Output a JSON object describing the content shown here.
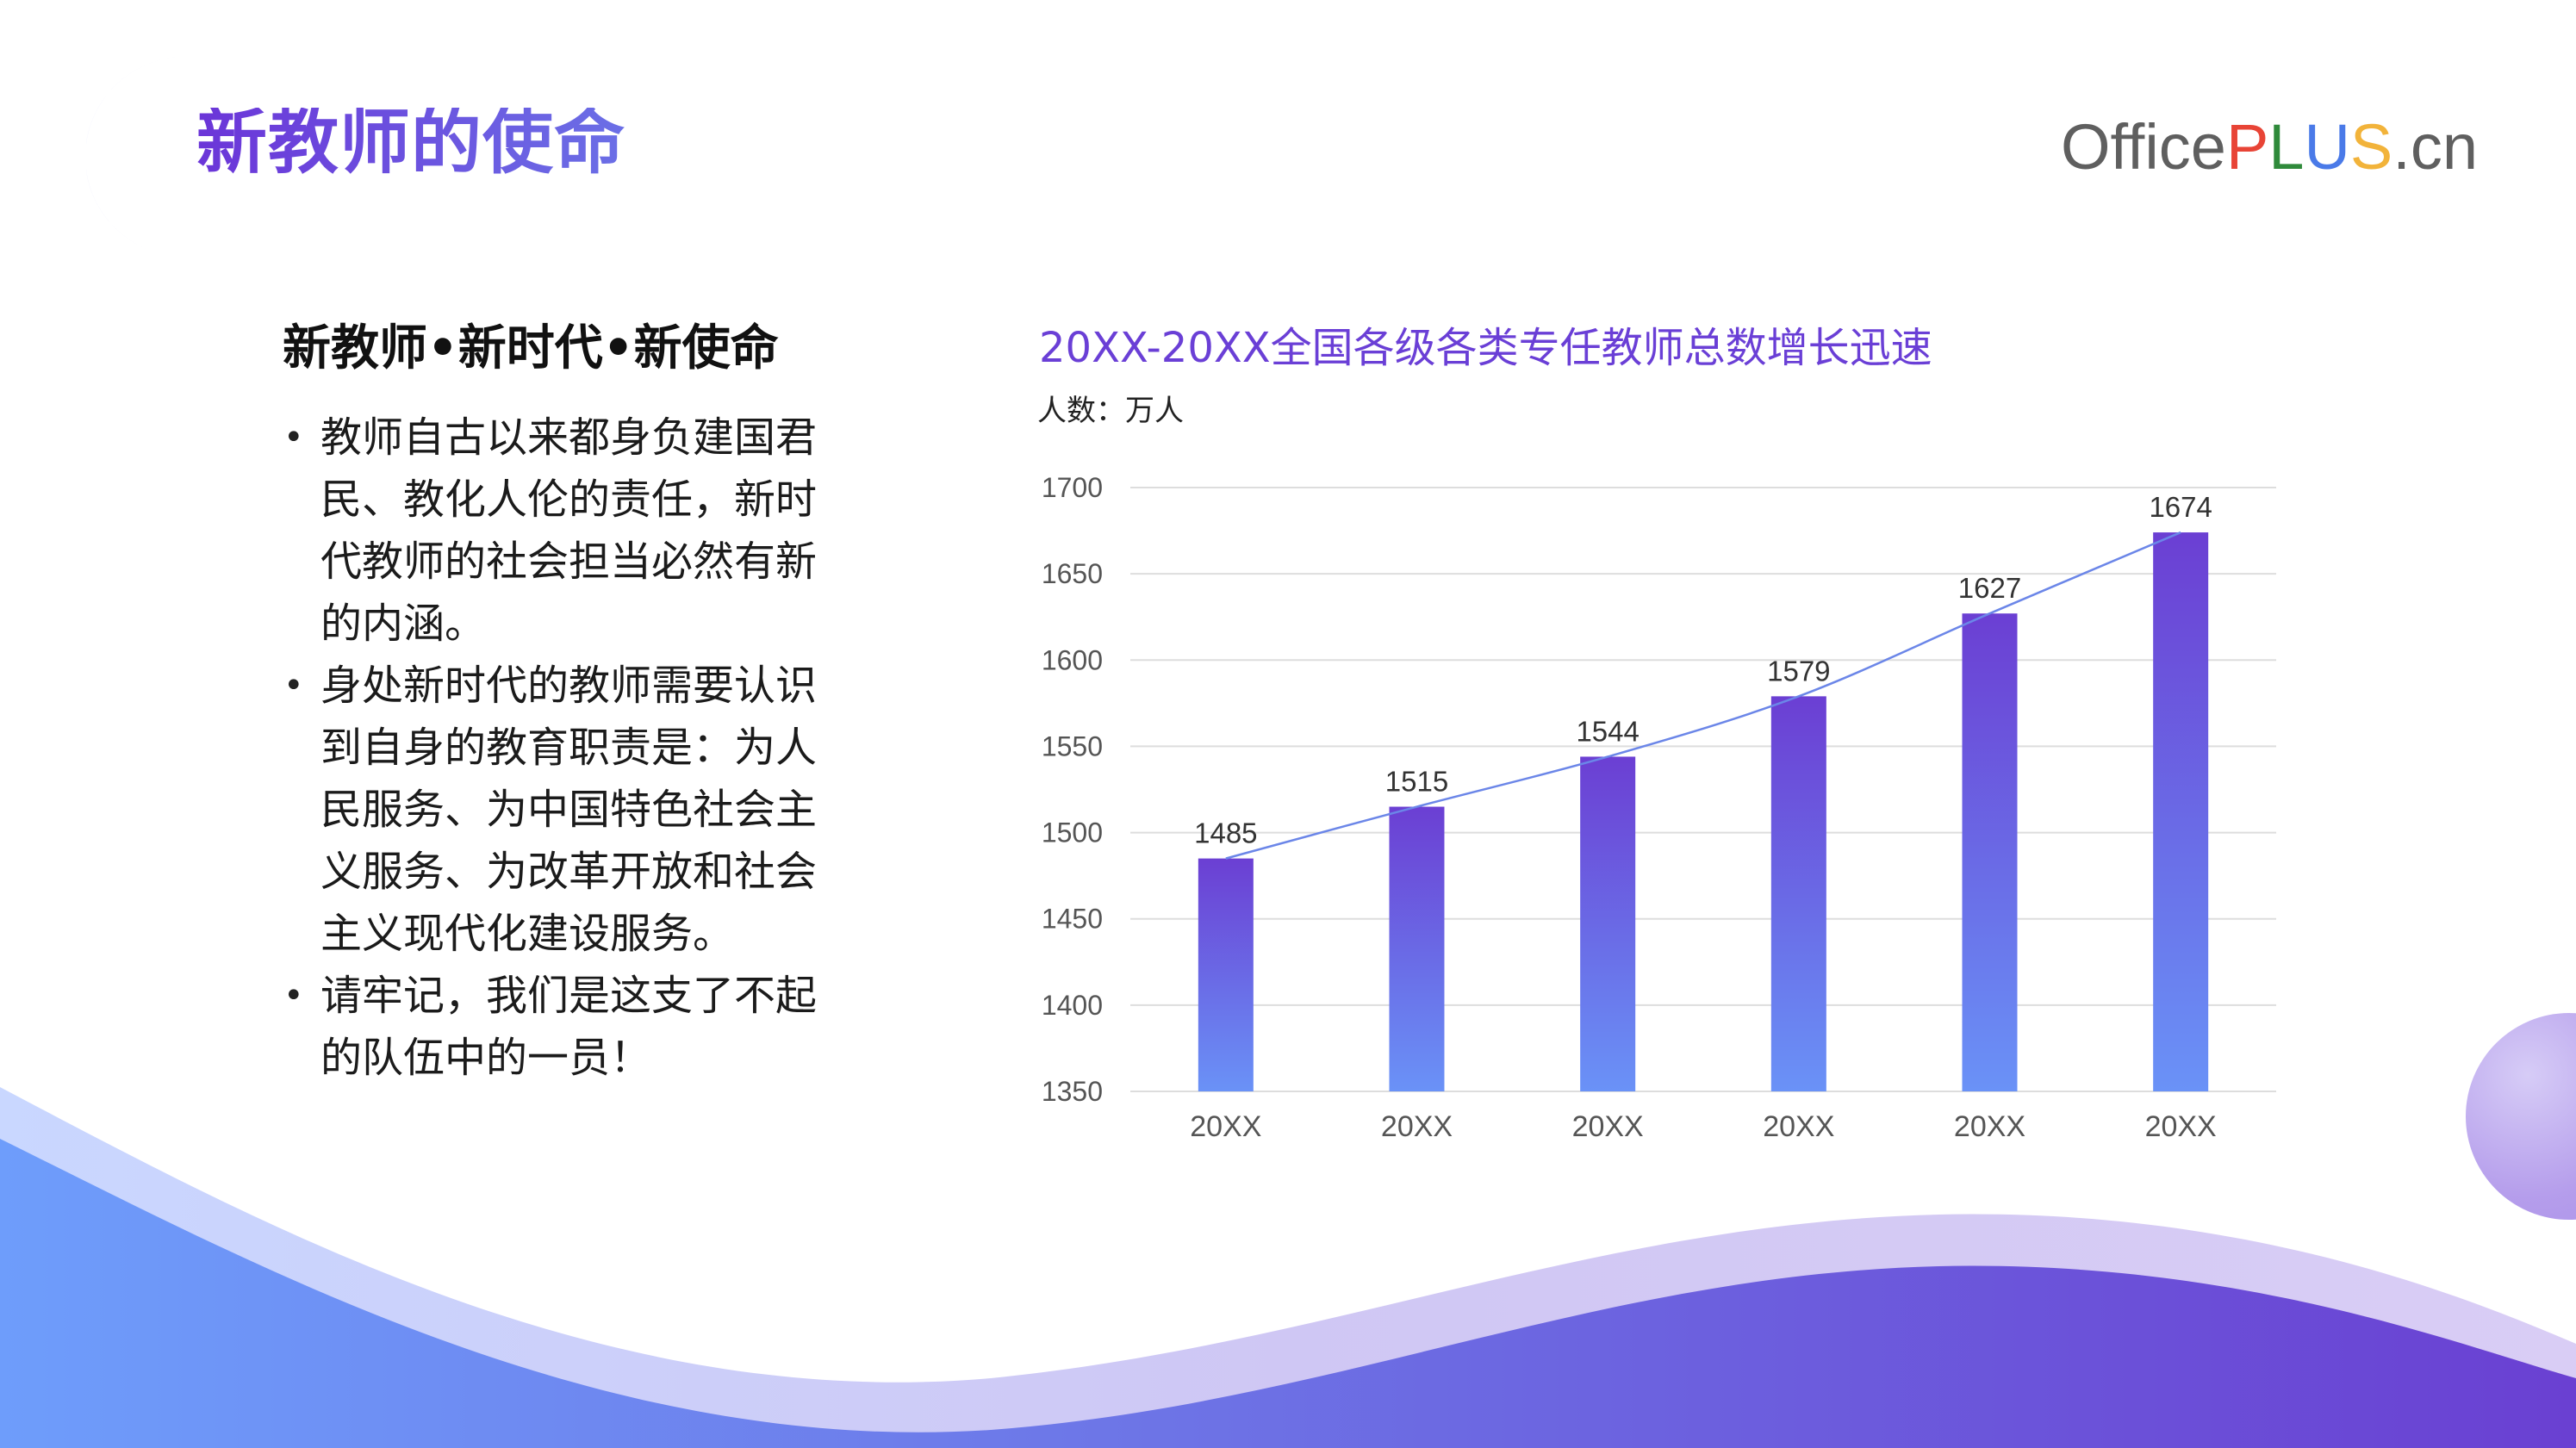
{
  "page": {
    "title": "新教师的使命",
    "brand": {
      "office": "Office",
      "p": "P",
      "l": "L",
      "u": "U",
      "s": "S",
      "cn": ".cn"
    }
  },
  "content": {
    "heading": "新教师•新时代•新使命",
    "bullets": [
      "教师自古以来都身负建国君民、教化人伦的责任，新时代教师的社会担当必然有新的内涵。",
      "身处新时代的教师需要认识到自身的教育职责是：为人民服务、为中国特色社会主义服务、为改革开放和社会主义现代化建设服务。",
      "请牢记，我们是这支了不起的队伍中的一员！"
    ]
  },
  "chart_data": {
    "type": "bar",
    "title": "20XX-20XX全国各级各类专任教师总数增长迅速",
    "unit_label": "人数：万人",
    "categories": [
      "20XX",
      "20XX",
      "20XX",
      "20XX",
      "20XX",
      "20XX"
    ],
    "values": [
      1485,
      1515,
      1544,
      1579,
      1627,
      1674
    ],
    "ylim": [
      1350,
      1700
    ],
    "yticks": [
      1350,
      1400,
      1450,
      1500,
      1550,
      1600,
      1650,
      1700
    ],
    "grid": true,
    "trendline": true,
    "data_labels": true,
    "colors": {
      "bar_top": "#6b3fd3",
      "bar_bottom": "#6a92f7",
      "trend": "#6b86e8",
      "grid": "#dddddd"
    }
  },
  "colors": {
    "accent": "#6a3fd6",
    "accent_blue": "#6d9cff"
  }
}
